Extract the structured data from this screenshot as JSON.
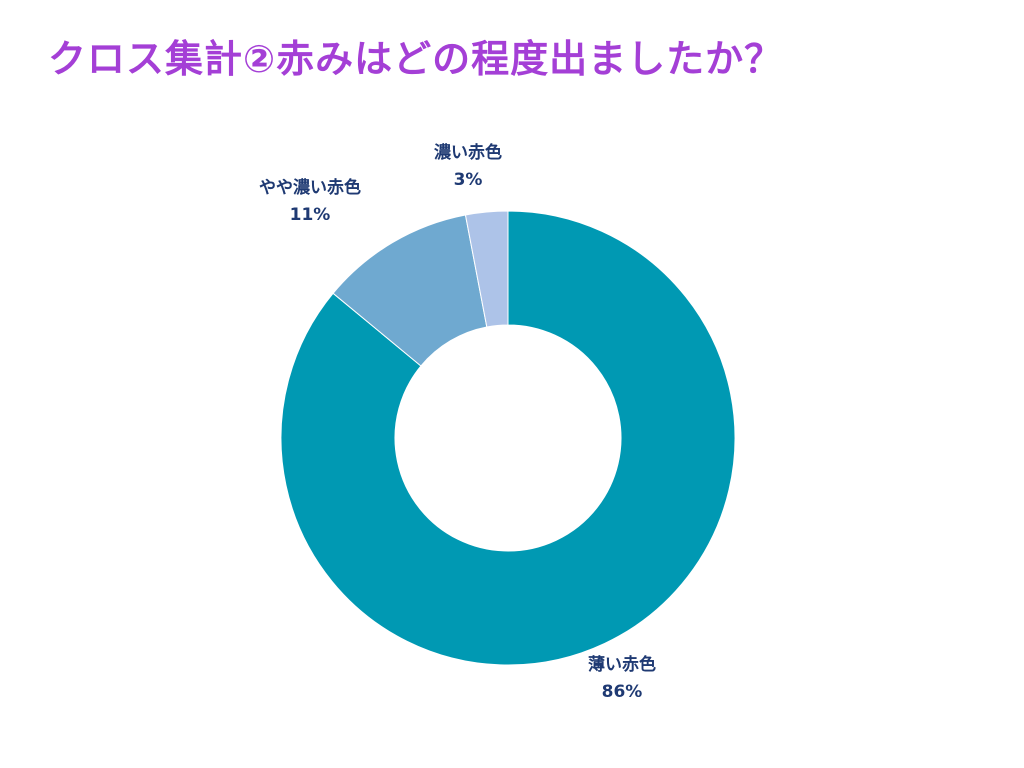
{
  "title": "クロス集計②赤みはどの程度出ましたか？",
  "chart_data": {
    "type": "pie",
    "variant": "donut",
    "start": "top",
    "direction": "clockwise",
    "slices": [
      {
        "label": "薄い赤色",
        "value": 86,
        "value_label": "86%",
        "color": "#0099b3"
      },
      {
        "label": "やや濃い赤色",
        "value": 11,
        "value_label": "11%",
        "color": "#6fa9d0"
      },
      {
        "label": "濃い赤色",
        "value": 3,
        "value_label": "3%",
        "color": "#adc3e8"
      }
    ]
  }
}
